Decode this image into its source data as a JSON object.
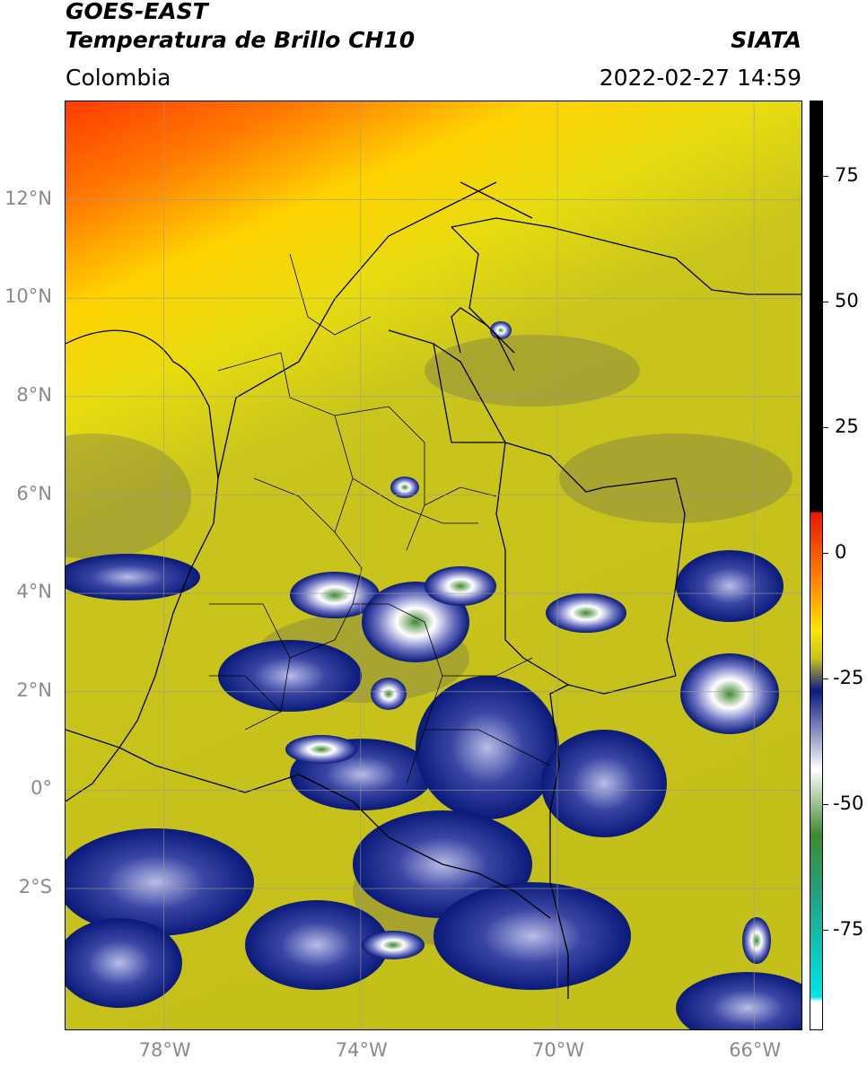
{
  "header": {
    "satellite": "GOES-EAST",
    "product": "Temperatura de Brillo CH10",
    "region": "Colombia",
    "source": "SIATA",
    "timestamp": "2022-02-27 14:59"
  },
  "map": {
    "latitude_labels": [
      "12°N",
      "10°N",
      "8°N",
      "6°N",
      "4°N",
      "2°N",
      "0°",
      "2°S"
    ],
    "longitude_labels": [
      "78°W",
      "74°W",
      "70°W",
      "66°W"
    ],
    "extent": {
      "lon_min": -80.0,
      "lon_max": -65.0,
      "lat_min": -4.9,
      "lat_max": 14.0
    },
    "gridlines": true
  },
  "colorbar": {
    "tick_labels": [
      "75",
      "50",
      "25",
      "0",
      "-25",
      "-50",
      "-75"
    ],
    "range": [
      -95,
      90
    ],
    "colors": {
      "black": "#000000",
      "red": "#e41a00",
      "orange": "#ff8c00",
      "yellow": "#ffe600",
      "olive": "#c8c41a",
      "gray": "#7a7a55",
      "navy": "#0a1a7a",
      "white": "#ffffff",
      "green": "#3f8a2f",
      "teal": "#1fa58a",
      "cyan": "#00e5e5"
    }
  }
}
